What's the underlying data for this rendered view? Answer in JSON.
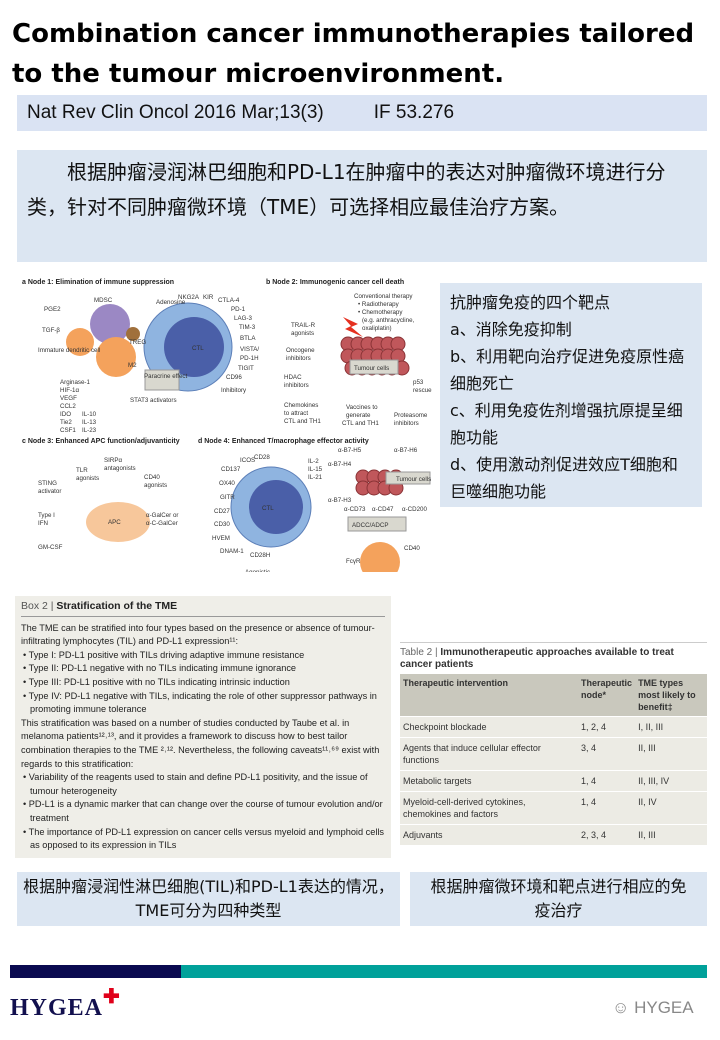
{
  "title": "Combination cancer immunotherapies tailored to the tumour microenvironment.",
  "citation": {
    "journal": "Nat Rev Clin Oncol 2016 Mar;13(3)",
    "impact": "IF 53.276"
  },
  "intro": "根据肿瘤浸润淋巴细胞和PD-L1在肿瘤中的表达对肿瘤微环境进行分类，针对不同肿瘤微环境（TME）可选择相应最佳治疗方案。",
  "figure": {
    "panels": [
      "a Node 1: Elimination of immune suppression",
      "b Node 2: Immunogenic cancer cell death",
      "c Node 3: Enhanced APC function/adjuvanticity",
      "d Node 4: Enhanced T/macrophage effector activity"
    ],
    "labels": [
      "MDSC",
      "Adenosine",
      "PGE2",
      "TGF-β",
      "Immature dendritic cell",
      "TREG",
      "M2",
      "Paracrine effect",
      "Arginase-1",
      "HIF-1α",
      "VEGF",
      "CCL2",
      "IDO",
      "Tie2",
      "CSF1",
      "IL-10",
      "IL-13",
      "IL-23",
      "STAT3 activators",
      "CTL",
      "NKG2A",
      "KIR",
      "CTLA-4",
      "PD-1",
      "LAG-3",
      "TIM-3",
      "BTLA",
      "VISTA/",
      "PD-1H",
      "TIGIT",
      "CD96",
      "Inhibitory",
      "Conventional therapy",
      "• Radiotherapy",
      "• Chemotherapy",
      "(e.g. anthracycline,",
      "oxaliplatin)",
      "TRAIL-R",
      "agonists",
      "Oncogene",
      "inhibitors",
      "HDAC",
      "inhibitors",
      "Tumour cells",
      "p53",
      "rescue",
      "Chemokines",
      "to attract",
      "CTL and TH1",
      "Vaccines to",
      "generate",
      "CTL and TH1",
      "Proteasome",
      "inhibitors",
      "SIRPα",
      "antagonists",
      "TLR",
      "agonists",
      "CD40",
      "agonists",
      "STING",
      "activator",
      "Type I",
      "IFN",
      "APC",
      "α-GalCer or",
      "α-C-GalCer",
      "GM-CSF",
      "ICOS",
      "CD28",
      "CD137",
      "OX40",
      "GITR",
      "CD27",
      "CD30",
      "HVEM",
      "DNAM-1",
      "CD28H",
      "CTL",
      "Agonistic",
      "IL-2",
      "IL-15",
      "IL-21",
      "α-B7-H5",
      "α-B7-H6",
      "α-B7-H4",
      "Tumour cells",
      "α-B7-H3",
      "α-CD73",
      "α-CD47",
      "α-CD200",
      "ADCC/ADCP",
      "FcγR",
      "CD40"
    ],
    "colors": {
      "ctl": "#8fb4e0",
      "ctl_core": "#4a5fa8",
      "tumour": "#c0575b",
      "orange": "#f4a25c",
      "mdsc": "#9b88c4"
    }
  },
  "targets": {
    "title": "抗肿瘤免疫的四个靶点",
    "items": [
      "a、消除免疫抑制",
      "b、利用靶向治疗促进免疫原性癌细胞死亡",
      "c、利用免疫佐剂增强抗原提呈细胞功能",
      "d、使用激动剂促进效应T细胞和巨噬细胞功能"
    ]
  },
  "box2": {
    "label": "Box 2 |",
    "title": "Stratification of the TME",
    "p1": "The TME can be stratified into four types based on the presence or absence of tumour-infiltrating lymphocytes (TIL) and PD-L1 expression¹¹:",
    "types": [
      "• Type I: PD-L1 positive with TILs driving adaptive immune resistance",
      "• Type II: PD-L1 negative with no TILs indicating immune ignorance",
      "• Type III: PD-L1 positive with no TILs indicating intrinsic induction",
      "• Type IV: PD-L1 negative with TILs, indicating the role of other suppressor pathways in promoting immune tolerance"
    ],
    "p2": "This stratification was based on a number of studies conducted by Taube et al. in melanoma patients¹²˒¹³, and it provides a framework to discuss how to best tailor combination therapies to the TME ²˒¹². Nevertheless, the following caveats¹¹˒⁶⁹ exist with regards to this stratification:",
    "caveats": [
      "• Variability of the reagents used to stain and define PD-L1 positivity, and the issue of tumour heterogeneity",
      "• PD-L1 is a dynamic marker that can change over the course of tumour evolution and/or treatment",
      "• The importance of PD-L1 expression on cancer cells versus myeloid and lymphoid cells as opposed to its expression in TILs"
    ]
  },
  "table2": {
    "label": "Table 2 |",
    "title": "Immunotherapeutic approaches available to treat cancer patients",
    "headers": [
      "Therapeutic intervention",
      "Therapeutic node*",
      "TME types most likely to benefit‡"
    ],
    "rows": [
      [
        "Checkpoint blockade",
        "1, 2, 4",
        "I, II, III"
      ],
      [
        "Agents that induce cellular effector functions",
        "3, 4",
        "II, III"
      ],
      [
        "Metabolic targets",
        "1, 4",
        "II, III, IV"
      ],
      [
        "Myeloid-cell-derived cytokines, chemokines and factors",
        "1, 4",
        "II, IV"
      ],
      [
        "Adjuvants",
        "2, 3, 4",
        "II, III"
      ]
    ]
  },
  "bottom": {
    "left": "根据肿瘤浸润性淋巴细胞(TIL)和PD-L1表达的情况，TME可分为四种类型",
    "right": "根据肿瘤微环境和靶点进行相应的免疫治疗"
  },
  "footer": {
    "logo": "HYGEA",
    "logo_plus": "✚",
    "wechat": "HYGEA",
    "colors": {
      "navy": "#0a0a50",
      "teal": "#00a19a",
      "red": "#e0001a"
    }
  }
}
